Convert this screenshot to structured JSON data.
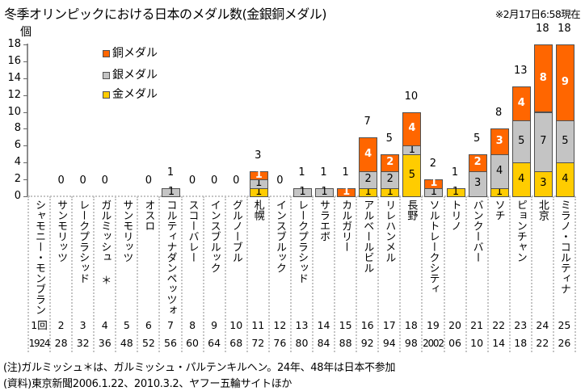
{
  "header": {
    "title": "冬季オリンピックにおける日本のメダル数(金銀銅メダル)",
    "note": "※2月17日6:58現在"
  },
  "chart_data": {
    "type": "bar",
    "stacked": true,
    "title": "冬季オリンピックにおける日本のメダル数(金銀銅メダル)",
    "xlabel": "",
    "ylabel": "個",
    "ylim": [
      0,
      18
    ],
    "yticks": [
      "0",
      "2",
      "4",
      "6",
      "8",
      "10",
      "12",
      "14",
      "16",
      "18"
    ],
    "grid": false,
    "legend_position": "top-left",
    "legend": [
      {
        "label": "銅メダル",
        "series": 2
      },
      {
        "label": "銀メダル",
        "series": 1
      },
      {
        "label": "金メダル",
        "series": 0
      }
    ],
    "categories": [
      "シャモニー・モンブラン",
      "サンモリッツ",
      "レークプラシッド",
      "ガルミッシュ ＊",
      "サンモリッツ",
      "オスロ",
      "コルティナダンペッツォ",
      "スコーバレー",
      "インスブルック",
      "グルノーブル",
      "札幌",
      "インスブルック",
      "レークプラシッド",
      "サラエボ",
      "カルガリー",
      "アルベールビル",
      "リレハンメル",
      "長野",
      "ソルトレークシティ",
      "トリノ",
      "バンクーバー",
      "ソチ",
      "ピョンチャン",
      "北京",
      "ミラノ・コルティナ"
    ],
    "editions": [
      "1回",
      "2",
      "3",
      "4",
      "5",
      "6",
      "7",
      "8",
      "9",
      "10",
      "11",
      "12",
      "13",
      "14",
      "15",
      "16",
      "17",
      "18",
      "19",
      "20",
      "21",
      "22",
      "23",
      "24",
      "25"
    ],
    "years": [
      "1924",
      "28",
      "32",
      "36",
      "48",
      "52",
      "56",
      "60",
      "64",
      "68",
      "72",
      "76",
      "80",
      "84",
      "88",
      "92",
      "94",
      "98",
      "2002",
      "06",
      "10",
      "14",
      "18",
      "22",
      "26"
    ],
    "series": [
      {
        "name": "金メダル",
        "color": "#FFCC00",
        "label_color": "#000000",
        "values": [
          0,
          0,
          0,
          0,
          0,
          0,
          0,
          0,
          0,
          0,
          1,
          0,
          0,
          0,
          0,
          1,
          1,
          5,
          0,
          1,
          0,
          1,
          4,
          3,
          4
        ]
      },
      {
        "name": "銀メダル",
        "color": "#C4C4C4",
        "label_color": "#000000",
        "values": [
          0,
          0,
          0,
          0,
          0,
          0,
          1,
          0,
          0,
          0,
          1,
          0,
          1,
          1,
          0,
          2,
          2,
          1,
          1,
          0,
          3,
          4,
          5,
          7,
          5
        ]
      },
      {
        "name": "銅メダル",
        "color": "#FF6600",
        "label_color": "#FFFFFF",
        "values": [
          0,
          0,
          0,
          0,
          0,
          0,
          0,
          0,
          0,
          0,
          1,
          0,
          0,
          0,
          1,
          4,
          2,
          4,
          1,
          0,
          2,
          3,
          4,
          8,
          9
        ]
      }
    ],
    "totals": [
      null,
      0,
      0,
      0,
      null,
      0,
      1,
      0,
      0,
      0,
      3,
      0,
      1,
      1,
      1,
      7,
      5,
      10,
      2,
      1,
      5,
      8,
      13,
      18,
      18
    ]
  },
  "footnotes": [
    "(注)ガルミッシュ＊は、ガルミッシュ・パルテンキルヘン。24年、48年は日本不参加",
    "(資料)東京新聞2006.1.22、2010.3.2、ヤフー五輪サイトほか"
  ]
}
